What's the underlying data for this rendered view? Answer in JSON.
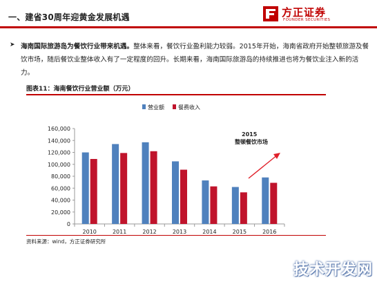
{
  "header": {
    "title": "一、建省30周年迎黄金发展机遇",
    "logo_cn": "方正证券",
    "logo_en": "FOUNDER SECURITIES"
  },
  "paragraph": {
    "bullet": "➤",
    "bold": "海南国际旅游岛为餐饮行业带来机遇。",
    "text": "整体来看，餐饮行业盈利能力较弱。2015年开始，海南省政府开始整顿旅游及餐饮市场，随后餐饮业整体收入有了一定程度的回升。长期来看，海南国际旅游岛的持续推进也将为餐饮业注入新的活力。"
  },
  "figure": {
    "title": "图表11：海南餐饮行业营业额（万元）",
    "source": "资料来源：wind，方正证券研究所"
  },
  "watermark": "技术开发网",
  "chart_data": {
    "type": "bar",
    "title": "",
    "xlabel": "",
    "ylabel": "",
    "categories": [
      "2010",
      "2011",
      "2012",
      "2013",
      "2014",
      "2015",
      "2016"
    ],
    "series": [
      {
        "name": "营业额",
        "color": "#4f81bd",
        "values": [
          120000,
          134000,
          137000,
          105000,
          73000,
          62000,
          78000
        ]
      },
      {
        "name": "餐费收入",
        "color": "#c0142c",
        "values": [
          109000,
          119000,
          122000,
          91000,
          63000,
          53000,
          69000
        ]
      }
    ],
    "ylim": [
      0,
      160000
    ],
    "yticks": [
      0,
      20000,
      40000,
      60000,
      80000,
      100000,
      120000,
      140000,
      160000
    ],
    "ytick_labels": [
      "0",
      "20,000",
      "40,000",
      "60,000",
      "80,000",
      "100,000",
      "120,000",
      "140,000",
      "160,000"
    ],
    "grid": false,
    "legend": "top-center",
    "annotation": {
      "year": "2015",
      "text": "整顿餐饮市场",
      "arrow_color": "#e0202a"
    }
  }
}
